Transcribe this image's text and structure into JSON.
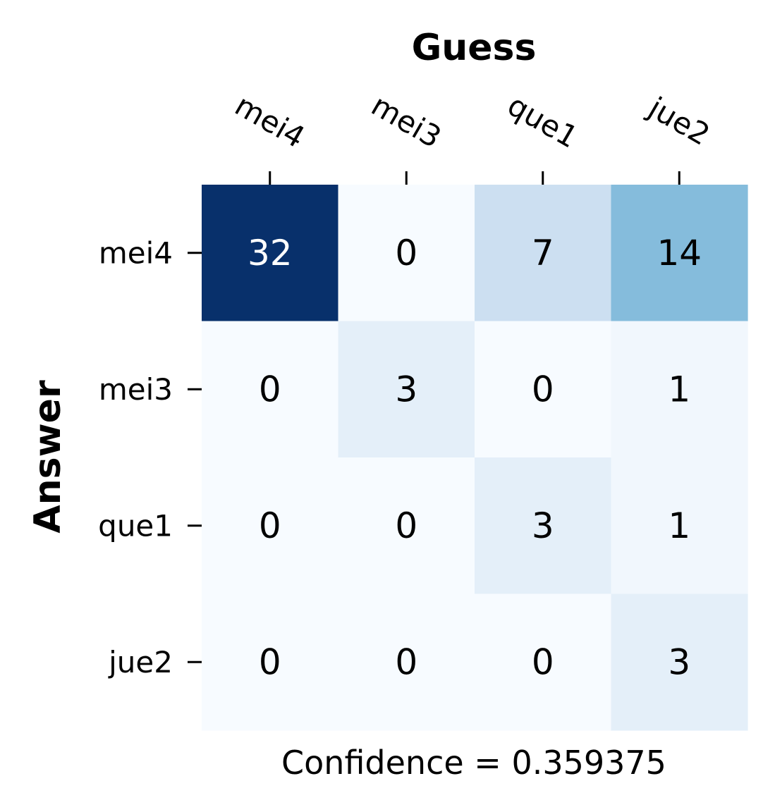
{
  "chart_data": {
    "type": "heatmap",
    "xlabel": "Guess",
    "ylabel": "Answer",
    "x_categories": [
      "mei4",
      "mei3",
      "que1",
      "jue2"
    ],
    "y_categories": [
      "mei4",
      "mei3",
      "que1",
      "jue2"
    ],
    "values": [
      [
        32,
        0,
        7,
        14
      ],
      [
        0,
        3,
        0,
        1
      ],
      [
        0,
        0,
        3,
        1
      ],
      [
        0,
        0,
        0,
        3
      ]
    ],
    "colormap": "Blues",
    "color_range": [
      0,
      32
    ],
    "annotation": "Confidence = 0.359375",
    "colors": {
      "low": "#f7fbff",
      "high": "#08306b",
      "text_dark": "#000000",
      "text_light": "#ffffff"
    }
  }
}
